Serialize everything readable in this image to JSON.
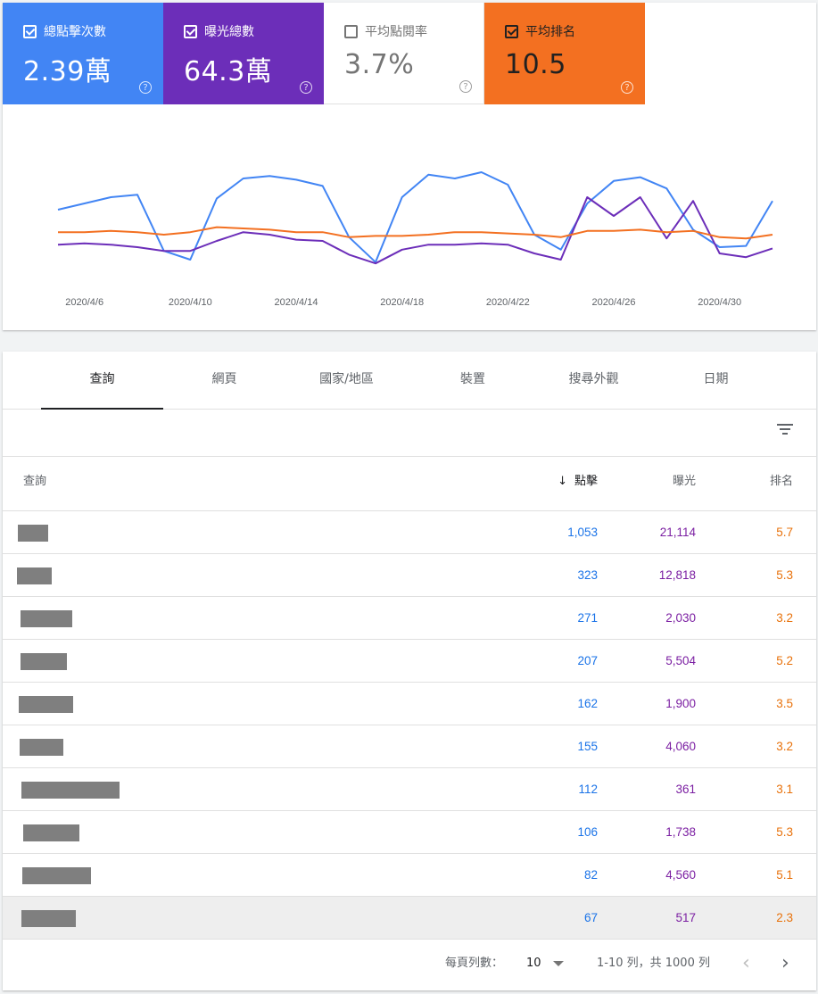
{
  "metrics": [
    {
      "label": "總點擊次數",
      "value": "2.39萬",
      "checked": true
    },
    {
      "label": "曝光總數",
      "value": "64.3萬",
      "checked": true
    },
    {
      "label": "平均點閱率",
      "value": "3.7%",
      "checked": false
    },
    {
      "label": "平均排名",
      "value": "10.5",
      "checked": true
    }
  ],
  "help_glyph": "?",
  "colors": {
    "clicks": "#4285f4",
    "impressions": "#6c2eb9",
    "position": "#f37021"
  },
  "chart_data": {
    "type": "line",
    "x": [
      "2020/4/5",
      "2020/4/6",
      "2020/4/7",
      "2020/4/8",
      "2020/4/9",
      "2020/4/10",
      "2020/4/11",
      "2020/4/12",
      "2020/4/13",
      "2020/4/14",
      "2020/4/15",
      "2020/4/16",
      "2020/4/17",
      "2020/4/18",
      "2020/4/19",
      "2020/4/20",
      "2020/4/21",
      "2020/4/22",
      "2020/4/23",
      "2020/4/24",
      "2020/4/25",
      "2020/4/26",
      "2020/4/27",
      "2020/4/28",
      "2020/4/29",
      "2020/4/30",
      "2020/5/1",
      "2020/5/2"
    ],
    "xticks": [
      "2020/4/6",
      "2020/4/10",
      "2020/4/14",
      "2020/4/18",
      "2020/4/22",
      "2020/4/26",
      "2020/4/30"
    ],
    "series": [
      {
        "key": "clicks",
        "values": [
          0.45,
          0.5,
          0.55,
          0.57,
          0.12,
          0.05,
          0.54,
          0.7,
          0.72,
          0.69,
          0.64,
          0.23,
          0.03,
          0.55,
          0.73,
          0.7,
          0.75,
          0.65,
          0.25,
          0.13,
          0.5,
          0.68,
          0.71,
          0.62,
          0.29,
          0.15,
          0.16,
          0.52
        ]
      },
      {
        "key": "impressions",
        "values": [
          0.17,
          0.18,
          0.17,
          0.15,
          0.12,
          0.12,
          0.2,
          0.27,
          0.25,
          0.21,
          0.2,
          0.09,
          0.02,
          0.13,
          0.17,
          0.17,
          0.18,
          0.17,
          0.1,
          0.05,
          0.55,
          0.4,
          0.55,
          0.22,
          0.52,
          0.1,
          0.07,
          0.14
        ]
      },
      {
        "key": "position",
        "values": [
          0.27,
          0.27,
          0.28,
          0.27,
          0.25,
          0.27,
          0.31,
          0.3,
          0.29,
          0.27,
          0.27,
          0.23,
          0.24,
          0.24,
          0.25,
          0.27,
          0.27,
          0.26,
          0.25,
          0.23,
          0.28,
          0.28,
          0.29,
          0.27,
          0.28,
          0.23,
          0.22,
          0.25
        ]
      }
    ],
    "grid": false
  },
  "tabs": [
    "查詢",
    "網頁",
    "國家/地區",
    "裝置",
    "搜尋外觀",
    "日期"
  ],
  "table": {
    "headers": {
      "query": "查詢",
      "clicks": "點擊",
      "impressions": "曝光",
      "position": "排名"
    },
    "sort_icon": "↓",
    "rows": [
      {
        "clicks": "1,053",
        "impressions": "21,114",
        "position": "5.7"
      },
      {
        "clicks": "323",
        "impressions": "12,818",
        "position": "5.3"
      },
      {
        "clicks": "271",
        "impressions": "2,030",
        "position": "3.2"
      },
      {
        "clicks": "207",
        "impressions": "5,504",
        "position": "5.2"
      },
      {
        "clicks": "162",
        "impressions": "1,900",
        "position": "3.5"
      },
      {
        "clicks": "155",
        "impressions": "4,060",
        "position": "3.2"
      },
      {
        "clicks": "112",
        "impressions": "361",
        "position": "3.1"
      },
      {
        "clicks": "106",
        "impressions": "1,738",
        "position": "5.3"
      },
      {
        "clicks": "82",
        "impressions": "4,560",
        "position": "5.1"
      },
      {
        "clicks": "67",
        "impressions": "517",
        "position": "2.3"
      }
    ]
  },
  "pager": {
    "rows_per_page_label": "每頁列數：",
    "rows_per_page": "10",
    "range": "1-10 列，共 1000 列",
    "prev": "‹",
    "next": "›"
  }
}
